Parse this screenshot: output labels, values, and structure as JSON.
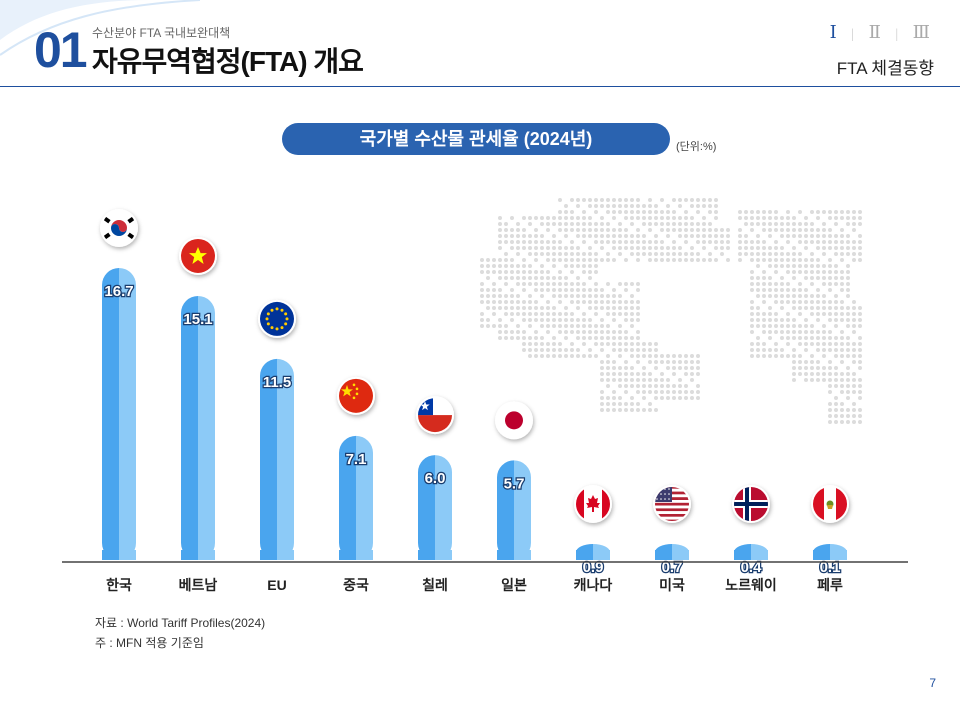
{
  "header": {
    "section_number": "01",
    "section_subtitle": "수산분야 FTA 국내보완대책",
    "section_title": "자유무역협정(FTA) 개요",
    "roman_nav": [
      "Ⅰ",
      "Ⅱ",
      "Ⅲ"
    ],
    "active_nav": "Ⅰ",
    "right_label": "FTA 체결동향"
  },
  "chart_data": {
    "type": "bar",
    "title": "국가별 수산물 관세율 (2024년)",
    "unit_label": "(단위:%)",
    "categories": [
      "한국",
      "베트남",
      "EU",
      "중국",
      "칠레",
      "일본",
      "캐나다",
      "미국",
      "노르웨이",
      "페루"
    ],
    "values": [
      16.7,
      15.1,
      11.5,
      7.1,
      6.0,
      5.7,
      0.9,
      0.7,
      0.4,
      0.1
    ],
    "value_labels": [
      "16.7",
      "15.1",
      "11.5",
      "7.1",
      "6.0",
      "5.7",
      "0.9",
      "0.7",
      "0.4",
      "0.1"
    ],
    "flag_icons": [
      "korea-flag-icon",
      "vietnam-flag-icon",
      "eu-flag-icon",
      "china-flag-icon",
      "chile-flag-icon",
      "japan-flag-icon",
      "canada-flag-icon",
      "usa-flag-icon",
      "norway-flag-icon",
      "peru-flag-icon"
    ],
    "ylim": [
      0,
      20
    ],
    "grid": false,
    "legend": "none",
    "colors": {
      "bar_dark": "#4aa5ee",
      "bar_light": "#8ccaf7",
      "axis": "#444444"
    }
  },
  "footnotes": {
    "source": "자료 : World Tariff Profiles(2024)",
    "note": "주 : MFN 적용 기준임"
  },
  "page_number": "7"
}
